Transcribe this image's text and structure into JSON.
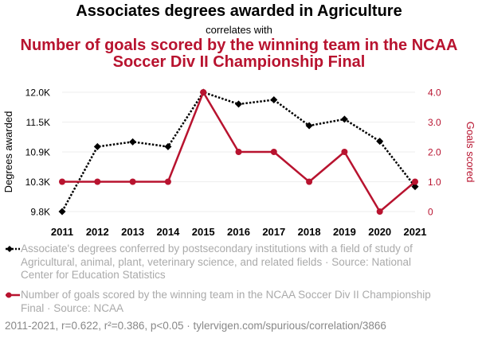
{
  "titles": {
    "series1_title": "Associates degrees awarded in Agriculture",
    "connector": "correlates with",
    "series2_title": "Number of goals scored by the winning team in the NCAA Soccer Div II Championship Final"
  },
  "chart_data": {
    "type": "line",
    "x": [
      2011,
      2012,
      2013,
      2014,
      2015,
      2016,
      2017,
      2018,
      2019,
      2020,
      2021
    ],
    "x_tick_labels": [
      "2011",
      "2012",
      "2013",
      "2014",
      "2015",
      "2016",
      "2017",
      "2018",
      "2019",
      "2020",
      "2021"
    ],
    "series": [
      {
        "name": "Associate's degrees conferred by postsecondary institutions with a field of study of Agricultural, animal, plant, veterinary science, and related fields · Source: National Center for Education Statistics",
        "axis": "left",
        "color": "#000000",
        "style": "dotted",
        "marker": "diamond",
        "values": [
          9786,
          10990,
          11080,
          10990,
          12000,
          11780,
          11860,
          11380,
          11500,
          11090,
          10250
        ]
      },
      {
        "name": "Number of goals scored by the winning team in the NCAA Soccer Div II Championship Final · Source: NCAA",
        "axis": "right",
        "color": "#b8132f",
        "style": "solid",
        "marker": "circle",
        "values": [
          1,
          1,
          1,
          1,
          4,
          2,
          2,
          1,
          2,
          0,
          1
        ]
      }
    ],
    "y_left": {
      "label": "Degrees awarded",
      "ylim": [
        9786,
        12000
      ],
      "ticks": [
        9786,
        10310,
        10900,
        11450,
        12000
      ],
      "tick_labels": [
        "9.8K",
        "10.3K",
        "10.9K",
        "11.5K",
        "12.0K"
      ]
    },
    "y_right": {
      "label": "Goals scored",
      "ylim": [
        0,
        4
      ],
      "ticks": [
        0,
        1,
        2,
        3,
        4
      ],
      "tick_labels": [
        "0",
        "1.0",
        "2.0",
        "3.0",
        "4.0"
      ]
    },
    "grid": true,
    "legend_placement": "bottom"
  },
  "legend": {
    "series1_text": "Associate's degrees conferred by postsecondary institutions with a field of study of Agricultural, animal, plant, veterinary science, and related fields · Source: National Center for Education Statistics",
    "series2_text": "Number of goals scored by the winning team in the NCAA Soccer Div II Championship Final · Source: NCAA"
  },
  "footer": "2011-2021, r=0.622, r²=0.386, p<0.05 · tylervigen.com/spurious/correlation/3866",
  "colors": {
    "series1": "#000000",
    "series2": "#b8132f",
    "grid": "#eeeeee",
    "muted": "#aaaaaa"
  }
}
